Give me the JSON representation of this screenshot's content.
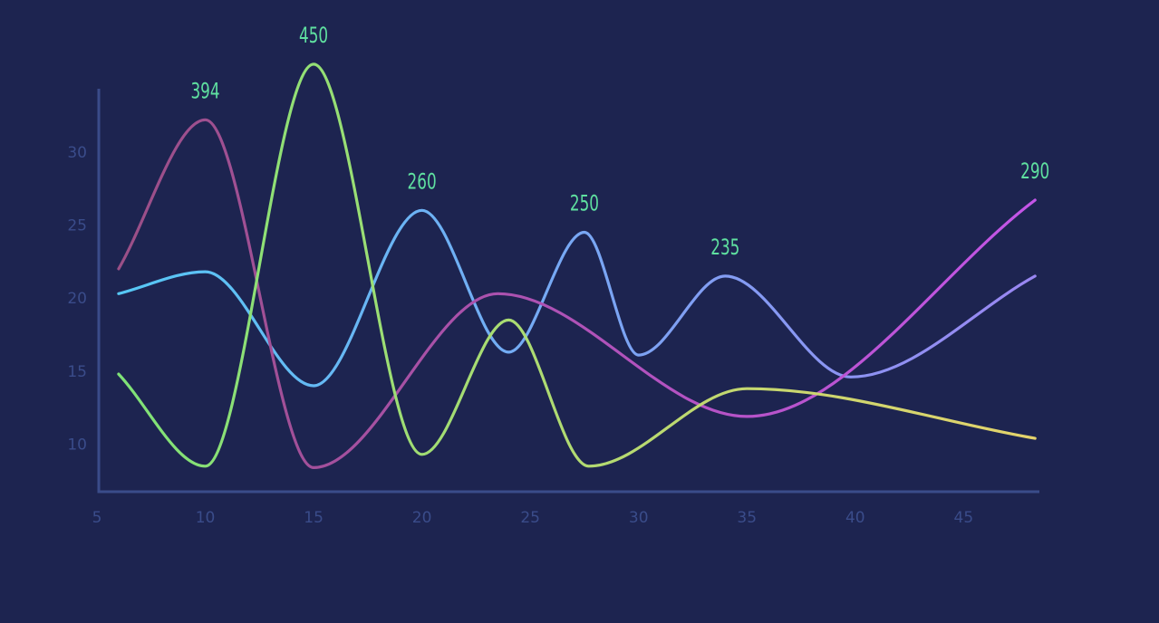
{
  "chart_data": {
    "type": "line",
    "title": "",
    "xlabel": "",
    "ylabel": "",
    "xlim": [
      5,
      48.5
    ],
    "ylim": [
      6.75,
      35.5
    ],
    "x_ticks": [
      "5",
      "10",
      "15",
      "20",
      "25",
      "30",
      "35",
      "40",
      "45"
    ],
    "y_ticks": [
      "10",
      "15",
      "20",
      "25",
      "30"
    ],
    "grid": false,
    "legend": "none",
    "series": [
      {
        "color": "#56c8f5",
        "color_end": "#9a86f2",
        "points": [
          [
            6,
            20.3
          ],
          [
            10,
            21.8
          ],
          [
            15,
            14
          ],
          [
            20,
            26
          ],
          [
            24,
            16.3
          ],
          [
            27.5,
            24.5
          ],
          [
            30,
            16.1
          ],
          [
            34,
            21.5
          ],
          [
            39.8,
            14.6
          ],
          [
            48.3,
            21.5
          ]
        ]
      },
      {
        "color": "#9a4f86",
        "color_end": "#c455e8",
        "points": [
          [
            6,
            22
          ],
          [
            10,
            32.2
          ],
          [
            15,
            8.4
          ],
          [
            23.5,
            20.3
          ],
          [
            35,
            11.9
          ],
          [
            48.3,
            26.7
          ]
        ]
      },
      {
        "color": "#7ee277",
        "color_end": "#e5d36c",
        "points": [
          [
            6,
            14.8
          ],
          [
            10,
            8.5
          ],
          [
            15,
            36
          ],
          [
            20,
            9.3
          ],
          [
            24,
            18.5
          ],
          [
            27.7,
            8.5
          ],
          [
            35,
            13.8
          ],
          [
            48.3,
            10.4
          ]
        ]
      }
    ],
    "data_labels": [
      {
        "x": 10,
        "y": 32.2,
        "text": "394"
      },
      {
        "x": 15,
        "y": 36,
        "text": "450"
      },
      {
        "x": 20,
        "y": 26,
        "text": "260"
      },
      {
        "x": 27.5,
        "y": 24.5,
        "text": "250"
      },
      {
        "x": 34,
        "y": 21.5,
        "text": "235"
      },
      {
        "x": 48.3,
        "y": 26.7,
        "text": "290"
      }
    ],
    "axis_color": "#3a4c8a",
    "label_color": "#5fe0a0",
    "background": "#1d2450"
  }
}
